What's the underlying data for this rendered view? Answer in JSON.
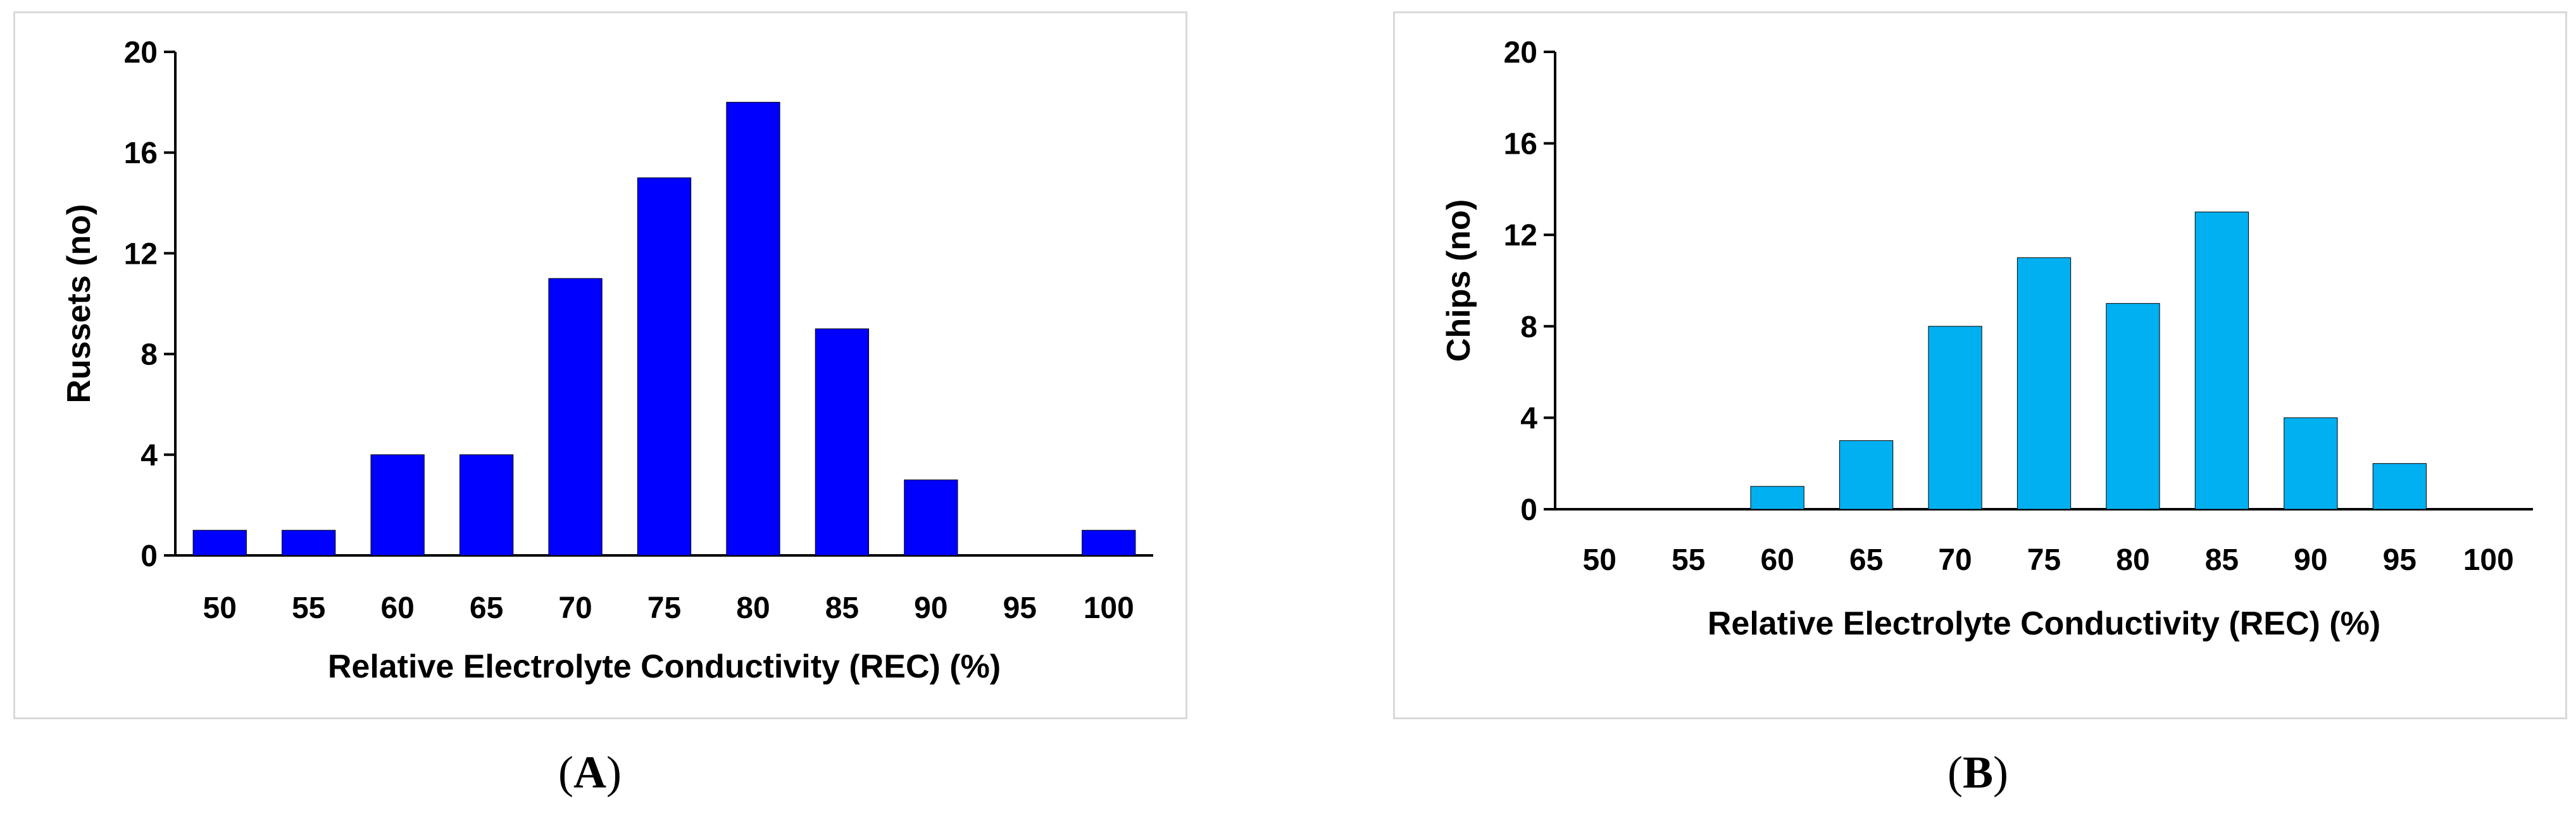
{
  "chart_data": [
    {
      "type": "bar",
      "categories": [
        "50",
        "55",
        "60",
        "65",
        "70",
        "75",
        "80",
        "85",
        "90",
        "95",
        "100"
      ],
      "values": [
        1,
        1,
        4,
        4,
        11,
        15,
        18,
        9,
        3,
        0,
        1
      ],
      "xlabel": "Relative Electrolyte Conductivity (REC) (%)",
      "ylabel": "Russets (no)",
      "ylim": [
        0,
        20
      ],
      "yticks": [
        0,
        4,
        8,
        12,
        16,
        20
      ],
      "color": "#0000ff",
      "grid": false,
      "panel_label": "A"
    },
    {
      "type": "bar",
      "categories": [
        "50",
        "55",
        "60",
        "65",
        "70",
        "75",
        "80",
        "85",
        "90",
        "95",
        "100"
      ],
      "values": [
        0,
        0,
        1,
        3,
        8,
        11,
        9,
        13,
        4,
        2,
        0
      ],
      "xlabel": "Relative Electrolyte Conductivity (REC) (%)",
      "ylabel": "Chips (no)",
      "ylim": [
        0,
        20
      ],
      "yticks": [
        0,
        4,
        8,
        12,
        16,
        20
      ],
      "color": "#00b0f0",
      "grid": false,
      "panel_label": "B"
    }
  ]
}
